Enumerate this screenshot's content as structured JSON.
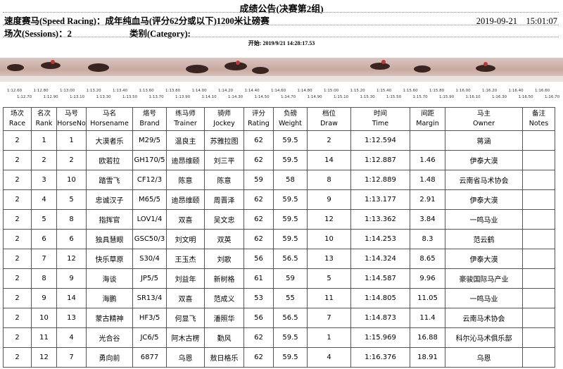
{
  "header": {
    "title": "成绩公告(决赛第2组)",
    "race_name": "速度赛马(Speed Racing)：成年纯血马(评分62分或以下)1200米让磅赛",
    "datetime": "2019-09-21　15:01:07",
    "session": "场次(Sessions)：2",
    "category": "类别(Category):",
    "start": "开始: 2019/9/21 14:28:17.53"
  },
  "timeline": {
    "upper": [
      "1:12.60",
      "1:12.80",
      "1:13.00",
      "1:13.20",
      "1:13.40",
      "1:13.60",
      "1:13.80",
      "1:14.00",
      "1:14.20",
      "1:14.40",
      "1:14.60",
      "1:14.80",
      "1:15.00",
      "1:15.20",
      "1:15.40",
      "1:15.60",
      "1:15.80",
      "1:16.00",
      "1:16.20",
      "1:16.40",
      "1:16.60"
    ],
    "lower": [
      "1:12.70",
      "1:12.90",
      "1:13.10",
      "1:13.30",
      "1:13.50",
      "1:13.70",
      "1:13.90",
      "1:14.10",
      "1:14.30",
      "1:14.50",
      "1:14.70",
      "1:14.90",
      "1:15.10",
      "1:15.30",
      "1:15.50",
      "1:15.70",
      "1:15.90",
      "1:16.10",
      "1:16.30",
      "1:16.50",
      "1:16.70"
    ]
  },
  "table": {
    "columns": [
      [
        "场次",
        "Race"
      ],
      [
        "名次",
        "Rank"
      ],
      [
        "马号",
        "HorseNo"
      ],
      [
        "马名",
        "Horsename"
      ],
      [
        "烙号",
        "Brand"
      ],
      [
        "练马师",
        "Trainer"
      ],
      [
        "骑师",
        "Jockey"
      ],
      [
        "评分",
        "Rating"
      ],
      [
        "负磅",
        "Weight"
      ],
      [
        "档位",
        "Draw"
      ],
      [
        "时间",
        "Time"
      ],
      [
        "间距",
        "Margin"
      ],
      [
        "马主",
        "Owner"
      ],
      [
        "备注",
        "Notes"
      ]
    ],
    "rows": [
      [
        "2",
        "1",
        "1",
        "大漠者乐",
        "M29/5",
        "温良主",
        "苏雅拉图",
        "62",
        "59.5",
        "2",
        "1:12.594",
        null,
        "蒋涵",
        null
      ],
      [
        "2",
        "2",
        "2",
        "欧若拉",
        "GH170/5",
        "迪昂维颐",
        "刘三平",
        "62",
        "59.5",
        "14",
        "1:12.887",
        "1.46",
        "伊泰大漠",
        null
      ],
      [
        "2",
        "3",
        "10",
        "踏雪飞",
        "CF12/3",
        "陈意",
        "陈意",
        "59",
        "58",
        "8",
        "1:12.889",
        "1.48",
        "云南省马术协会",
        null
      ],
      [
        "2",
        "4",
        "5",
        "忠诚汉子",
        "M65/5",
        "迪昂维颐",
        "周晋泽",
        "62",
        "59.5",
        "9",
        "1:13.177",
        "2.91",
        "伊泰大漠",
        null
      ],
      [
        "2",
        "5",
        "8",
        "指挥官",
        "LOV1/4",
        "双喜",
        "吴文忠",
        "62",
        "59.5",
        "12",
        "1:13.362",
        "3.84",
        "一鸣马业",
        null
      ],
      [
        "2",
        "6",
        "6",
        "独具慧眼",
        "GSC50/3",
        "刘文明",
        "双英",
        "62",
        "59.5",
        "10",
        "1:14.253",
        "8.3",
        "范云鹤",
        null
      ],
      [
        "2",
        "7",
        "12",
        "快乐草原",
        "S30/4",
        "王玉杰",
        "刘歌",
        "56",
        "56.5",
        "13",
        "1:14.324",
        "8.65",
        "伊泰大漠",
        null
      ],
      [
        "2",
        "8",
        "9",
        "海谈",
        "JP5/5",
        "刘益年",
        "新树格",
        "61",
        "59",
        "5",
        "1:14.587",
        "9.96",
        "豪骏国际马产业",
        null
      ],
      [
        "2",
        "9",
        "14",
        "海鹏",
        "SR13/4",
        "双喜",
        "范成义",
        "53",
        "55",
        "11",
        "1:14.805",
        "11.05",
        "一鸣马业",
        null
      ],
      [
        "2",
        "10",
        "13",
        "蒙古精神",
        "HF3/5",
        "何显飞",
        "潘照华",
        "56",
        "56.5",
        "7",
        "1:14.873",
        "11.4",
        "云南马术协会",
        null
      ],
      [
        "2",
        "11",
        "4",
        "光合谷",
        "JC6/5",
        "阿木古楞",
        "勤风",
        "62",
        "59.5",
        "1",
        "1:15.969",
        "16.88",
        "科尔沁马术俱乐部",
        null
      ],
      [
        "2",
        "12",
        "7",
        "勇向前",
        "6877",
        "乌恩",
        "敖日格乐",
        "62",
        "59.5",
        "4",
        "1:16.376",
        "18.91",
        "乌恩",
        null
      ]
    ]
  }
}
